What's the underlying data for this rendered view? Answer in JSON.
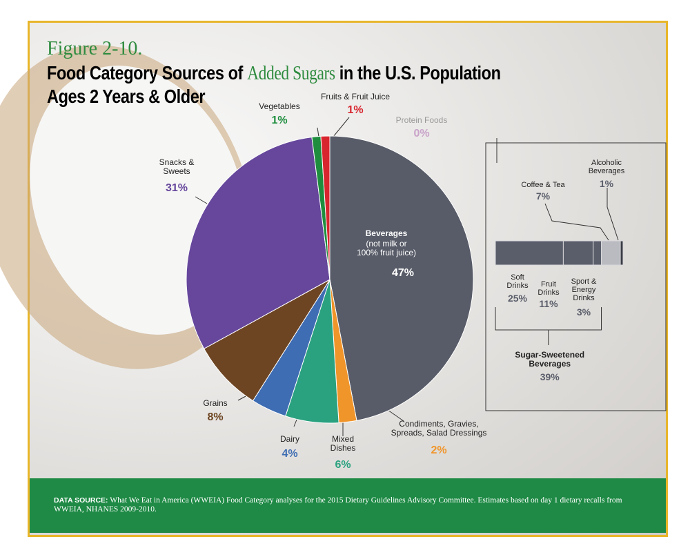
{
  "chart_data": {
    "type": "pie",
    "figure_label": "Figure 2-10.",
    "title_parts": [
      "Food Category Sources of ",
      "Added Sugars",
      " in the U.S. Population",
      "Ages 2 Years & Older"
    ],
    "categories": [
      "Beverages",
      "Condiments, Gravies,\nSpreads, Salad Dressings",
      "Mixed\nDishes",
      "Dairy",
      "Grains",
      "Snacks &\nSweets",
      "Vegetables",
      "Fruits & Fruit Juice",
      "Protein Foods"
    ],
    "values": [
      47,
      2,
      6,
      4,
      8,
      31,
      1,
      1,
      0
    ],
    "value_labels": [
      "47%",
      "2%",
      "6%",
      "4%",
      "8%",
      "31%",
      "1%",
      "1%",
      "0%"
    ],
    "colors": [
      "#585c68",
      "#f0952a",
      "#2aa17f",
      "#3f6db3",
      "#6d4523",
      "#66479c",
      "#1e8e3e",
      "#d8262f",
      "#c9a3c9"
    ],
    "beverages_note": "(not milk or\n100% fruit juice)",
    "breakdown": {
      "categories": [
        "Soft\nDrinks",
        "Fruit\nDrinks",
        "Sport &\nEnergy\nDrinks",
        "Coffee & Tea",
        "Alcoholic\nBeverages"
      ],
      "values": [
        25,
        11,
        3,
        7,
        1
      ],
      "value_labels": [
        "25%",
        "11%",
        "3%",
        "7%",
        "1%"
      ],
      "colors": [
        "#5a5e6a",
        "#5a5e6a",
        "#5a5e6a",
        "#b9bbc0",
        "#3a3d45"
      ],
      "group_label": "Sugar-Sweetened\nBeverages",
      "group_value": 39,
      "group_value_label": "39%"
    }
  },
  "source": {
    "label": "DATA SOURCE:",
    "text": "What We Eat in America (WWEIA) Food Category analyses for the 2015 Dietary Guidelines Advisory Committee. Estimates based on day 1 dietary recalls from WWEIA, NHANES 2009-2010."
  }
}
